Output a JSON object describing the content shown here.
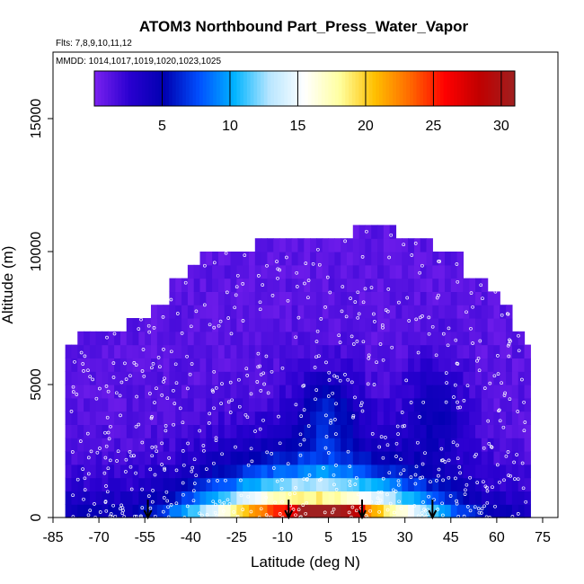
{
  "chart_data": {
    "type": "heatmap",
    "title": "ATOM3 Northbound Part_Press_Water_Vapor",
    "flights_label": "Flts: 7,8,9,10,11,12",
    "dates_label": "MMDD: 1014,1017,1019,1020,1023,1025",
    "xlabel": "Latitude (deg N)",
    "ylabel": "Altitude (m)",
    "xlim": [
      -85,
      80
    ],
    "ylim": [
      0,
      17500
    ],
    "x_ticks": [
      -85,
      -70,
      -55,
      -40,
      -25,
      -10,
      5,
      15,
      30,
      45,
      60,
      75
    ],
    "y_ticks": [
      0,
      5000,
      10000,
      15000
    ],
    "colorbar": {
      "min": 0,
      "max": 31,
      "ticks": [
        5,
        10,
        15,
        20,
        25,
        30
      ],
      "colors": [
        "#7b22f0",
        "#2a00d0",
        "#0000b0",
        "#0050ff",
        "#00b4ff",
        "#b8e6ff",
        "#ffffff",
        "#ffffa0",
        "#ffc000",
        "#ff6a00",
        "#ff0000",
        "#c00000",
        "#a02020"
      ]
    },
    "altitude_bins_m": [
      0,
      500,
      1000,
      1500,
      2000,
      2500,
      3000,
      3500,
      4000,
      4500,
      5000,
      5500,
      6000,
      6500,
      7000,
      7500,
      8000,
      8500,
      9000,
      9500,
      10000,
      10500
    ],
    "coverage_top_m": [
      {
        "from": -81,
        "to": -76,
        "top": 6500
      },
      {
        "from": -76,
        "to": -60,
        "top": 7000
      },
      {
        "from": -60,
        "to": -53,
        "top": 7500
      },
      {
        "from": -53,
        "to": -47,
        "top": 8000
      },
      {
        "from": -47,
        "to": -41,
        "top": 9000
      },
      {
        "from": -41,
        "to": -37,
        "top": 9500
      },
      {
        "from": -37,
        "to": -18,
        "top": 10000
      },
      {
        "from": -18,
        "to": 14,
        "top": 10500
      },
      {
        "from": 14,
        "to": 28,
        "top": 11000
      },
      {
        "from": 28,
        "to": 40,
        "top": 10500
      },
      {
        "from": 40,
        "to": 50,
        "top": 10000
      },
      {
        "from": 50,
        "to": 57,
        "top": 9000
      },
      {
        "from": 57,
        "to": 61,
        "top": 8500
      },
      {
        "from": 61,
        "to": 65,
        "top": 8000
      },
      {
        "from": 65,
        "to": 69,
        "top": 7000
      },
      {
        "from": 69,
        "to": 71,
        "top": 6500
      }
    ],
    "profile_markers_lat": [
      -54,
      -8,
      16,
      39
    ]
  }
}
